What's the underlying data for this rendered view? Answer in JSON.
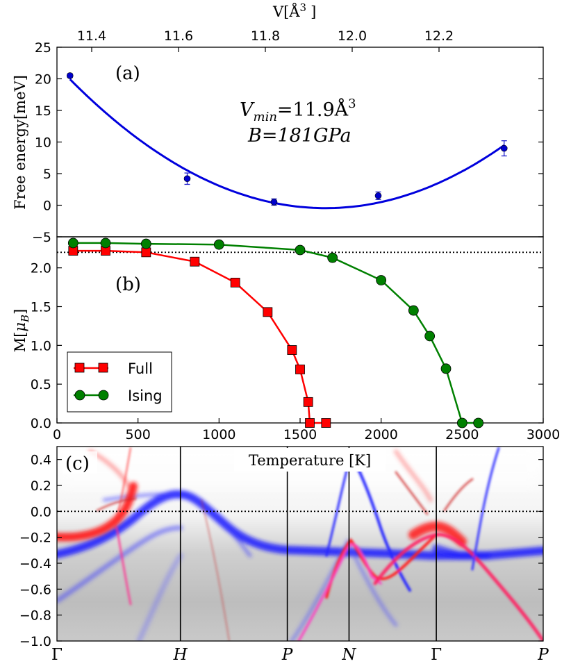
{
  "chart_data": [
    {
      "id": "a",
      "type": "scatter",
      "panel_label": "(a)",
      "ylabel": "Free energy[meV]",
      "xlabel": "V[Å³]",
      "xlabel_base": "V[Å",
      "xlabel_sup": "3",
      "xlabel_close": "]",
      "xlim": [
        11.32,
        12.44
      ],
      "ylim": [
        -5,
        25
      ],
      "xticks": [
        11.4,
        11.6,
        11.8,
        12.0,
        12.2
      ],
      "xtick_labels": [
        "11.4",
        "11.6",
        "11.8",
        "12.0",
        "12.2"
      ],
      "yticks": [
        -5,
        0,
        5,
        10,
        15,
        20,
        25
      ],
      "ytick_labels": [
        "−5",
        "0",
        "5",
        "10",
        "15",
        "20",
        "25"
      ],
      "points": {
        "x": [
          11.35,
          11.62,
          11.82,
          12.06,
          12.35
        ],
        "y": [
          20.5,
          4.2,
          0.5,
          1.5,
          9.0
        ],
        "err": [
          0.3,
          0.9,
          0.5,
          0.6,
          1.2
        ]
      },
      "fit_curve": {
        "form": "quadratic",
        "vmin": 11.9,
        "a": 0.0,
        "note": "parabolic fit"
      },
      "annotation_line1": "V_min = 11.9Å³",
      "annotation_vmin_v": "V",
      "annotation_vmin_sub": "min",
      "annotation_vmin_eq": "=11.9Å",
      "annotation_vmin_sup": "3",
      "annotation_line2": "B=181GPa",
      "color": "#0000cc"
    },
    {
      "id": "b",
      "type": "line",
      "panel_label": "(b)",
      "xlabel": "Temperature [K]",
      "ylabel": "M[μB]",
      "ylabel_base": "M[",
      "ylabel_mu": "μ",
      "ylabel_sub": "B",
      "ylabel_close": "]",
      "xlim": [
        0,
        3000
      ],
      "ylim": [
        0.0,
        2.4
      ],
      "xticks": [
        0,
        500,
        1000,
        1500,
        2000,
        2500,
        3000
      ],
      "xtick_labels": [
        "0",
        "500",
        "1000",
        "1500",
        "2000",
        "2500",
        "3000"
      ],
      "yticks": [
        0.0,
        0.5,
        1.0,
        1.5,
        2.0
      ],
      "ytick_labels": [
        "0.0",
        "0.5",
        "1.0",
        "1.5",
        "2.0"
      ],
      "reference_line": 2.2,
      "series": [
        {
          "name": "Full",
          "marker": "square",
          "color": "#ff0000",
          "x": [
            100,
            300,
            550,
            850,
            1100,
            1300,
            1450,
            1500,
            1550,
            1560,
            1660
          ],
          "y": [
            2.22,
            2.22,
            2.2,
            2.08,
            1.81,
            1.43,
            0.94,
            0.69,
            0.27,
            0.0,
            0.0
          ]
        },
        {
          "name": "Ising",
          "marker": "circle",
          "color": "#008000",
          "x": [
            100,
            300,
            550,
            1000,
            1500,
            1700,
            2000,
            2200,
            2300,
            2400,
            2500,
            2600
          ],
          "y": [
            2.32,
            2.32,
            2.31,
            2.3,
            2.23,
            2.13,
            1.84,
            1.45,
            1.12,
            0.7,
            0.0,
            0.0
          ]
        }
      ],
      "legend": [
        "Full",
        "Ising"
      ],
      "legend_position": "lower-left"
    },
    {
      "id": "c",
      "type": "heatmap",
      "panel_label": "(c)",
      "ylim": [
        -1.0,
        0.5
      ],
      "yticks": [
        -1.0,
        -0.8,
        -0.6,
        -0.4,
        -0.2,
        0.0,
        0.2,
        0.4
      ],
      "ytick_labels": [
        "−1.0",
        "−0.8",
        "−0.6",
        "−0.4",
        "−0.2",
        "0.0",
        "0.2",
        "0.4"
      ],
      "kpath": [
        "Γ",
        "H",
        "P",
        "N",
        "Γ",
        "P"
      ],
      "kpath_positions": [
        0.0,
        1.0,
        1.866,
        2.366,
        3.073,
        3.939
      ],
      "kpath_italic": [
        false,
        true,
        true,
        true,
        false,
        true
      ],
      "fermi_level": 0.0
    }
  ]
}
